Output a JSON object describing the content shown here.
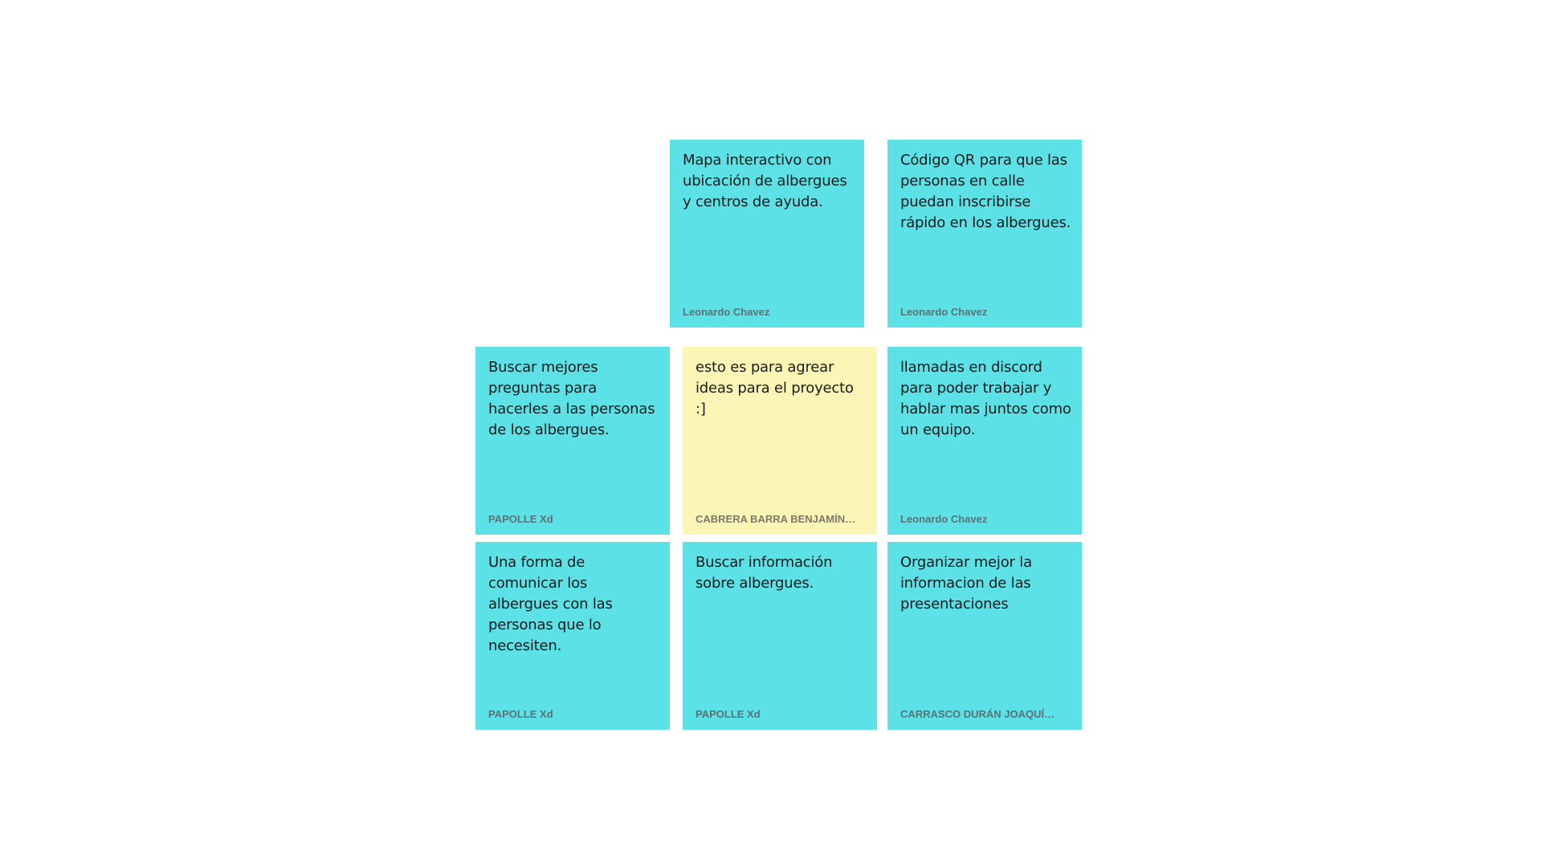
{
  "notes": [
    {
      "text": "Mapa interactivo con ubicación de albergues y centros de ayuda.",
      "author": "Leonardo Chavez",
      "color": "#5ce1e6"
    },
    {
      "text": "Código QR para que las personas en calle puedan inscribirse rápido en los albergues.",
      "author": "Leonardo Chavez",
      "color": "#5ce1e6"
    },
    {
      "text": "Buscar mejores preguntas para hacerles a las personas de los albergues.",
      "author": "PAPOLLE Xd",
      "color": "#5ce1e6"
    },
    {
      "text": "esto es para agrear ideas para el proyecto :]",
      "author": "CABRERA BARRA BENJAMÍN…",
      "color": "#fbf6b6"
    },
    {
      "text": "llamadas en discord para  poder trabajar y hablar mas juntos como un equipo.",
      "author": "Leonardo Chavez",
      "color": "#5ce1e6"
    },
    {
      "text": "Una forma de comunicar los albergues con las personas que lo necesiten.",
      "author": "PAPOLLE Xd",
      "color": "#5ce1e6"
    },
    {
      "text": "Buscar información sobre albergues.",
      "author": "PAPOLLE Xd",
      "color": "#5ce1e6"
    },
    {
      "text": "Organizar mejor la informacion de las presentaciones",
      "author": "CARRASCO DURÁN JOAQUÍ…",
      "color": "#5ce1e6"
    }
  ]
}
